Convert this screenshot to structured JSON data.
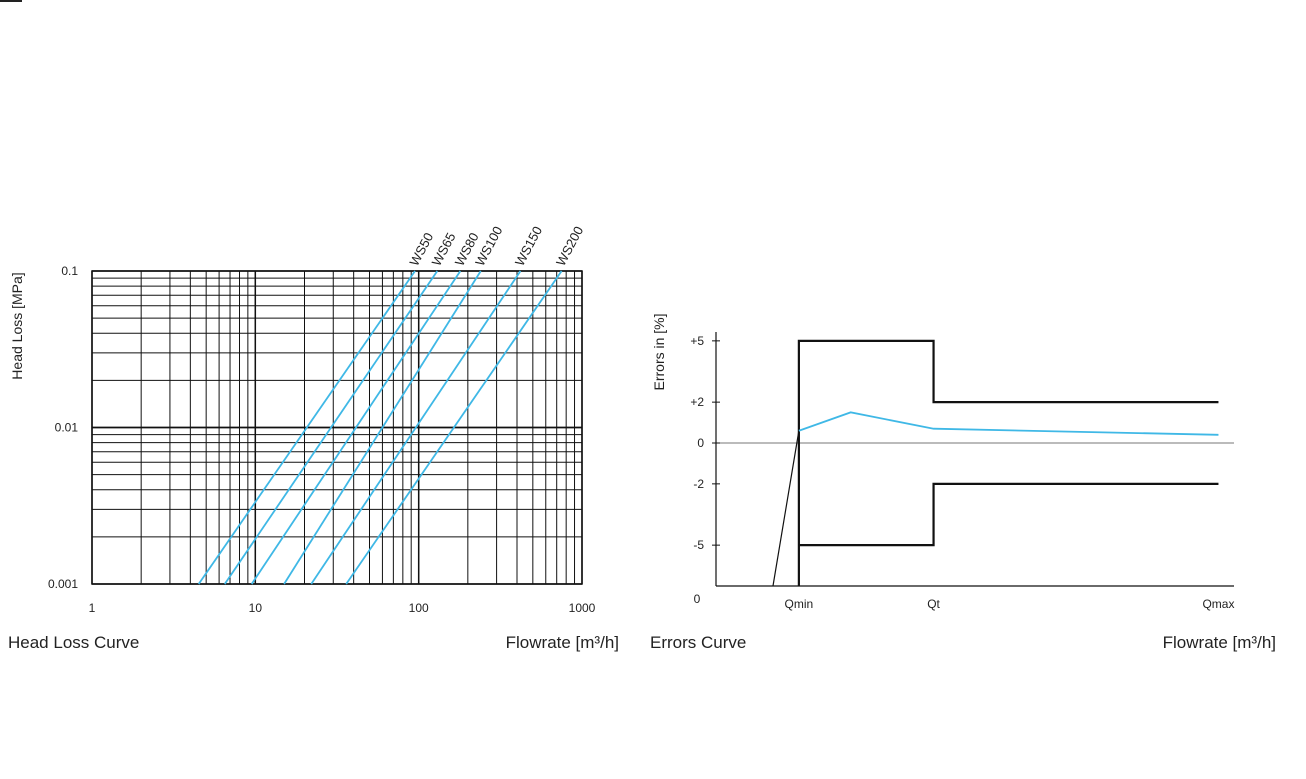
{
  "chart_data": [
    {
      "type": "line",
      "caption": "Head Loss Curve",
      "xlabel": "Flowrate [m³/h]",
      "ylabel": "Head Loss [MPa]",
      "x_scale": "log",
      "y_scale": "log",
      "xlim": [
        1,
        1000
      ],
      "ylim": [
        0.001,
        0.1
      ],
      "x_ticks": [
        {
          "v": 1,
          "label": "1"
        },
        {
          "v": 10,
          "label": "10"
        },
        {
          "v": 100,
          "label": "100"
        },
        {
          "v": 1000,
          "label": "1000"
        }
      ],
      "y_ticks": [
        {
          "v": 0.1,
          "label": "0.1"
        },
        {
          "v": 0.01,
          "label": "0.01"
        },
        {
          "v": 0.001,
          "label": "0.001"
        }
      ],
      "grid": true,
      "series_color": "#3fb8e6",
      "series": [
        {
          "name": "WS50",
          "x": [
            4.5,
            95
          ],
          "y": [
            0.001,
            0.1
          ]
        },
        {
          "name": "WS65",
          "x": [
            6.5,
            130
          ],
          "y": [
            0.001,
            0.1
          ]
        },
        {
          "name": "WS80",
          "x": [
            9.5,
            180
          ],
          "y": [
            0.001,
            0.1
          ]
        },
        {
          "name": "WS100",
          "x": [
            15,
            240
          ],
          "y": [
            0.001,
            0.1
          ]
        },
        {
          "name": "WS150",
          "x": [
            22,
            420
          ],
          "y": [
            0.001,
            0.1
          ]
        },
        {
          "name": "WS200",
          "x": [
            36,
            750
          ],
          "y": [
            0.001,
            0.1
          ]
        }
      ]
    },
    {
      "type": "line",
      "caption": "Errors Curve",
      "xlabel": "Flowrate [m³/h]",
      "ylabel": "Errors in [%]",
      "x_categories": [
        "Qmin",
        "Qt",
        "Qmax"
      ],
      "x_positions": [
        0.16,
        0.42,
        0.97
      ],
      "y_ticks": [
        {
          "v": 5,
          "label": "+5"
        },
        {
          "v": 2,
          "label": "+2"
        },
        {
          "v": 0,
          "label": "0"
        },
        {
          "v": -2,
          "label": "-2"
        },
        {
          "v": -5,
          "label": "-5"
        }
      ],
      "origin_label": "0",
      "ylim": [
        -7,
        7
      ],
      "limit_color": "#111111",
      "error_color": "#3fb8e6",
      "upper_limit": [
        {
          "x": 0.16,
          "y": -7
        },
        {
          "x": 0.16,
          "y": 5
        },
        {
          "x": 0.42,
          "y": 5
        },
        {
          "x": 0.42,
          "y": 2
        },
        {
          "x": 0.97,
          "y": 2
        }
      ],
      "lower_limit": [
        {
          "x": 0.16,
          "y": -5
        },
        {
          "x": 0.42,
          "y": -5
        },
        {
          "x": 0.42,
          "y": -2
        },
        {
          "x": 0.97,
          "y": -2
        }
      ],
      "start_segment": [
        {
          "x": 0.11,
          "y": -7
        },
        {
          "x": 0.16,
          "y": 0.6
        }
      ],
      "error_curve": [
        {
          "x": 0.16,
          "y": 0.6
        },
        {
          "x": 0.26,
          "y": 1.5
        },
        {
          "x": 0.42,
          "y": 0.7
        },
        {
          "x": 0.97,
          "y": 0.4
        }
      ]
    }
  ]
}
